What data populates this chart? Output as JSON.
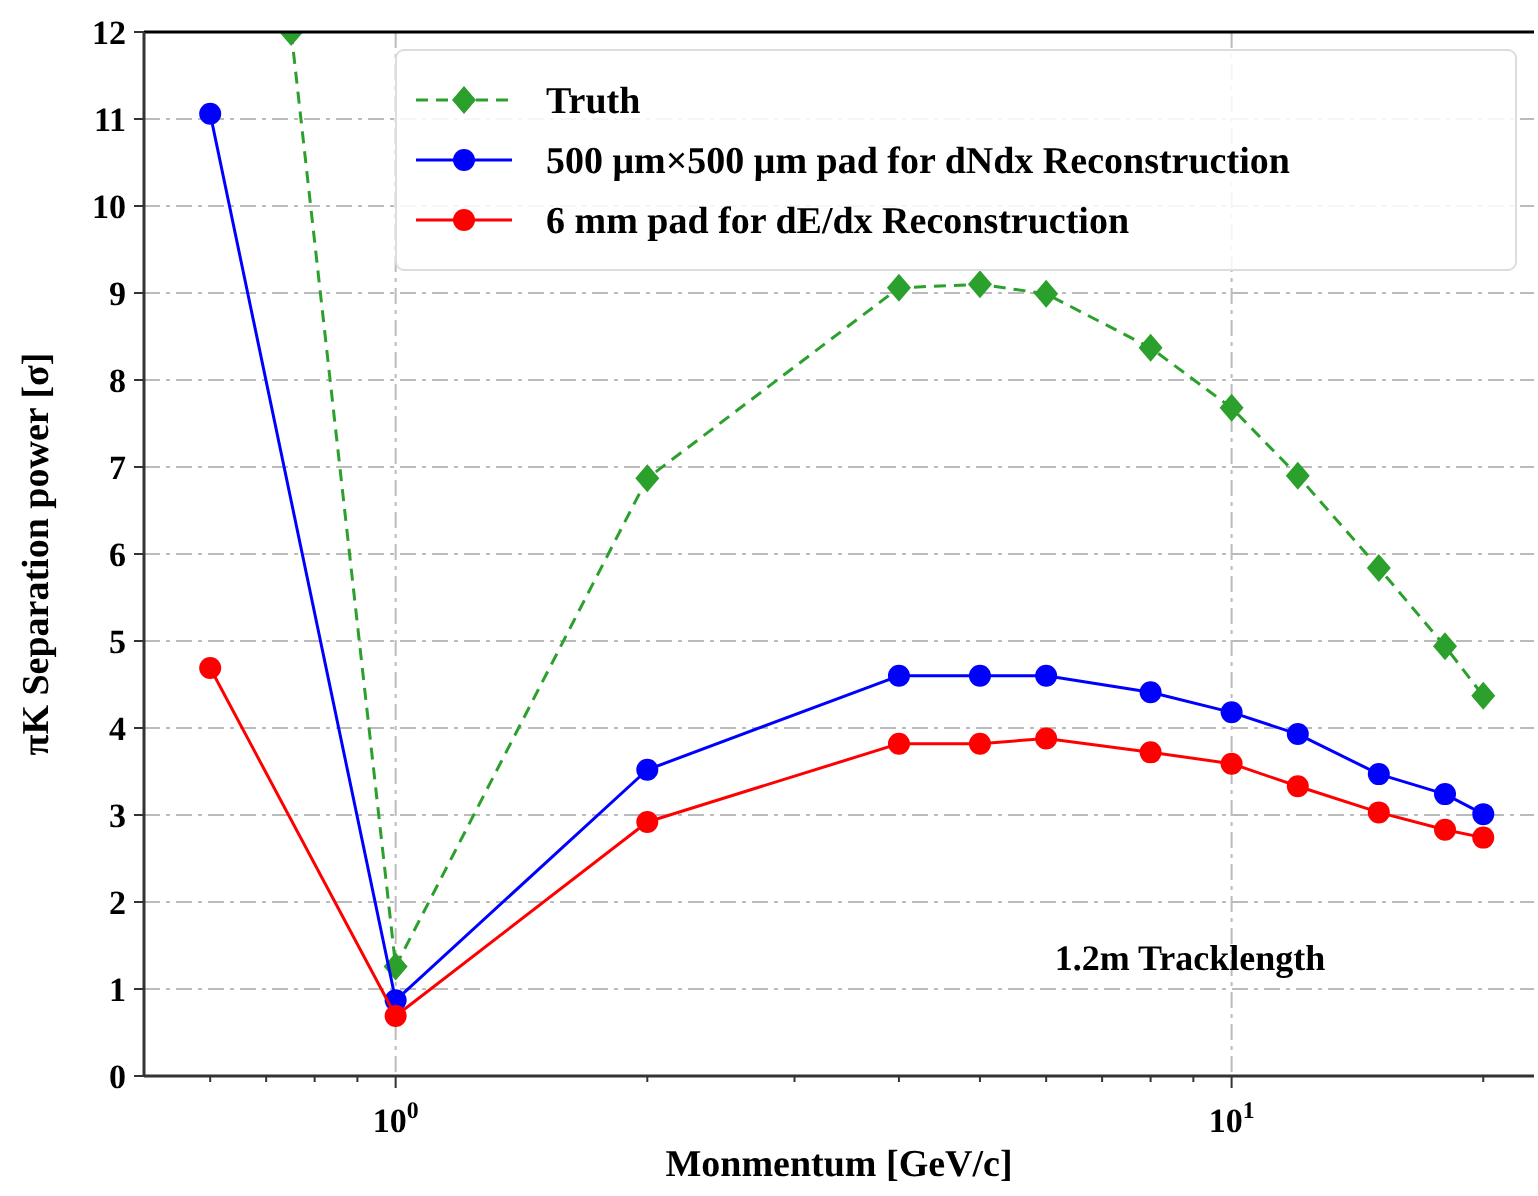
{
  "chart_data": {
    "type": "line",
    "xlabel": "Monmentum [GeV/c]",
    "ylabel": "πK Separation power [σ]",
    "x": [
      0.6,
      1,
      2,
      4,
      5,
      6,
      8,
      10,
      12,
      15,
      18,
      20
    ],
    "series": [
      {
        "name": "Truth",
        "color": "#2ca02c",
        "marker": "diamond",
        "line_style": "dashed",
        "x": [
          0.75,
          1,
          2,
          4,
          5,
          6,
          8,
          10,
          12,
          15,
          18,
          20
        ],
        "values": [
          12,
          1.26,
          6.87,
          9.06,
          9.1,
          8.99,
          8.37,
          7.68,
          6.9,
          5.84,
          4.94,
          4.37
        ]
      },
      {
        "name": "500 μm×500 μm pad for dNdx Reconstruction",
        "color": "#0000ff",
        "marker": "circle",
        "line_style": "solid",
        "values": [
          11.06,
          0.87,
          3.52,
          4.6,
          4.6,
          4.6,
          4.41,
          4.18,
          3.93,
          3.47,
          3.24,
          3.01
        ]
      },
      {
        "name": "6 mm pad for dE/dx Reconstruction",
        "color": "#ff0000",
        "marker": "circle",
        "line_style": "solid",
        "values": [
          4.69,
          0.69,
          2.92,
          3.82,
          3.82,
          3.88,
          3.72,
          3.59,
          3.33,
          3.03,
          2.83,
          2.74
        ]
      }
    ],
    "log": "x",
    "xlim": [
      0.5,
      23
    ],
    "xticks": [
      {
        "value": 0.6,
        "label": null
      },
      {
        "value": 0.7,
        "label": null
      },
      {
        "value": 0.8,
        "label": null
      },
      {
        "value": 0.9,
        "label": null
      },
      {
        "value": 1,
        "label": "10$^{0}$"
      },
      {
        "value": 2,
        "label": null
      },
      {
        "value": 3,
        "label": null
      },
      {
        "value": 4,
        "label": null
      },
      {
        "value": 5,
        "label": null
      },
      {
        "value": 6,
        "label": null
      },
      {
        "value": 7,
        "label": null
      },
      {
        "value": 8,
        "label": null
      },
      {
        "value": 9,
        "label": null
      },
      {
        "value": 10,
        "label": "10$^{1}$"
      },
      {
        "value": 20,
        "label": null
      }
    ],
    "ylim": [
      0,
      12
    ],
    "yticks": [
      0,
      1,
      2,
      3,
      4,
      5,
      6,
      7,
      8,
      9,
      10,
      11,
      12
    ],
    "grid": true,
    "legend": "top right",
    "annotations": [
      "1.2m Tracklength"
    ]
  }
}
